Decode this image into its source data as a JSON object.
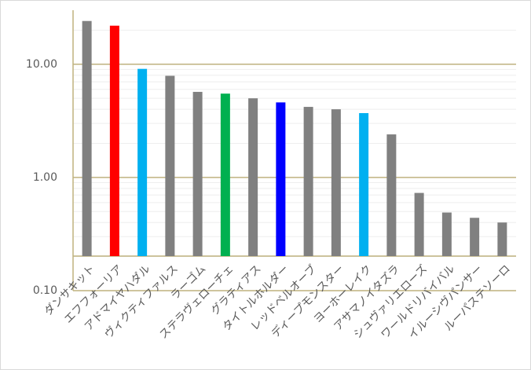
{
  "chart_data": {
    "type": "bar",
    "log_scale": true,
    "grid": true,
    "categories": [
      "ダンサキット",
      "エフフォーリア",
      "アドマイヤハダル",
      "ヴィクティファルス",
      "ラーゴム",
      "ステラヴェローチェ",
      "グラティアス",
      "タイトルホルダー",
      "レッドベルオーブ",
      "ディープモンスター",
      "ヨーホーレイク",
      "アサマノイタズラ",
      "シュヴァリエローズ",
      "ワールドリバイバル",
      "イルーシヴパンサー",
      "ルーパステソーロ"
    ],
    "values": [
      24.1,
      21.9,
      9.1,
      7.9,
      5.7,
      5.5,
      5.0,
      4.6,
      4.2,
      4.0,
      3.7,
      2.4,
      0.73,
      0.49,
      0.44,
      0.4
    ],
    "colors": [
      "#808080",
      "#ff0000",
      "#00b0f0",
      "#808080",
      "#808080",
      "#00b050",
      "#808080",
      "#0000ff",
      "#808080",
      "#808080",
      "#00b0f0",
      "#808080",
      "#808080",
      "#808080",
      "#808080",
      "#808080"
    ],
    "ylim": [
      0.1,
      30
    ],
    "yticks": [
      {
        "value": 0.1,
        "label": "0.10"
      },
      {
        "value": 1,
        "label": "1.00"
      },
      {
        "value": 10,
        "label": "10.00"
      }
    ]
  }
}
